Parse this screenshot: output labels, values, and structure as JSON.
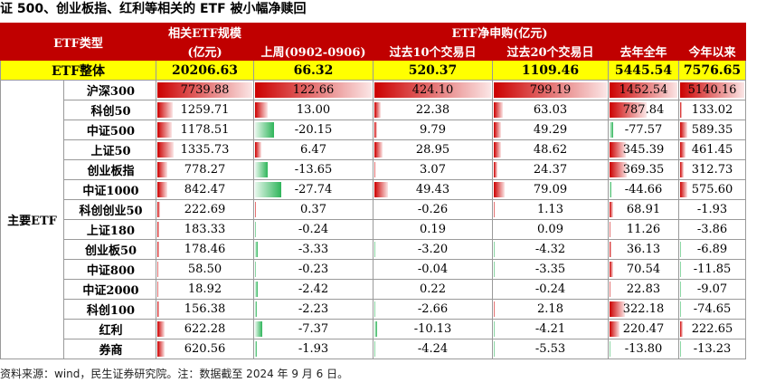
{
  "title": "证 500、创业板指、红利等相关的 ETF 被小幅净赎回",
  "header": {
    "type_label": "ETF类型",
    "size_label": "相关ETF规模",
    "size_unit": "(亿元)",
    "net_label": "ETF净申购(亿元)",
    "cols": [
      "上周(0902-0906)",
      "过去10个交易日",
      "过去20个交易日",
      "去年全年",
      "今年以来"
    ]
  },
  "total": {
    "label": "ETF整体",
    "values": [
      "20206.63",
      "66.32",
      "520.37",
      "1109.46",
      "5445.54",
      "7576.65"
    ]
  },
  "group_label": "主要ETF",
  "rows": [
    {
      "name": "沪深300",
      "values": [
        "7739.88",
        "122.66",
        "424.10",
        "799.19",
        "1452.54",
        "5140.16"
      ]
    },
    {
      "name": "科创50",
      "values": [
        "1259.71",
        "13.00",
        "22.38",
        "63.03",
        "787.84",
        "133.02"
      ]
    },
    {
      "name": "中证500",
      "values": [
        "1178.51",
        "-20.15",
        "9.79",
        "49.29",
        "-77.57",
        "589.35"
      ]
    },
    {
      "name": "上证50",
      "values": [
        "1335.73",
        "6.47",
        "28.95",
        "48.62",
        "345.39",
        "461.45"
      ]
    },
    {
      "name": "创业板指",
      "values": [
        "778.27",
        "-13.65",
        "3.07",
        "24.37",
        "369.35",
        "312.73"
      ]
    },
    {
      "name": "中证1000",
      "values": [
        "842.47",
        "-27.74",
        "49.43",
        "79.09",
        "-44.66",
        "575.60"
      ]
    },
    {
      "name": "科创创业50",
      "values": [
        "222.69",
        "0.37",
        "-0.26",
        "1.13",
        "68.91",
        "-1.93"
      ]
    },
    {
      "name": "上证180",
      "values": [
        "183.33",
        "-0.24",
        "0.19",
        "0.09",
        "11.26",
        "-3.86"
      ]
    },
    {
      "name": "创业板50",
      "values": [
        "178.46",
        "-3.33",
        "-3.20",
        "-4.32",
        "36.13",
        "-6.89"
      ]
    },
    {
      "name": "中证800",
      "values": [
        "58.50",
        "-0.23",
        "-0.04",
        "-3.35",
        "70.54",
        "-11.85"
      ]
    },
    {
      "name": "中证2000",
      "values": [
        "18.92",
        "-2.42",
        "0.22",
        "-0.24",
        "22.83",
        "-9.07"
      ]
    },
    {
      "name": "科创100",
      "values": [
        "156.38",
        "-2.23",
        "-2.66",
        "2.18",
        "322.18",
        "-74.65"
      ]
    },
    {
      "name": "红利",
      "values": [
        "622.28",
        "-7.37",
        "-10.13",
        "-4.21",
        "220.47",
        "222.65"
      ]
    },
    {
      "name": "券商",
      "values": [
        "620.56",
        "-1.93",
        "-4.24",
        "-5.53",
        "-13.80",
        "-13.23"
      ]
    }
  ],
  "colors": {
    "header": "#c00000",
    "total": "#ffff00",
    "pos_bar": "#cc0000",
    "neg_bar": "#2fb55a"
  },
  "footer": "资料来源：wind，民生证券研究院。注：数据截至 2024 年 9 月 6 日。"
}
